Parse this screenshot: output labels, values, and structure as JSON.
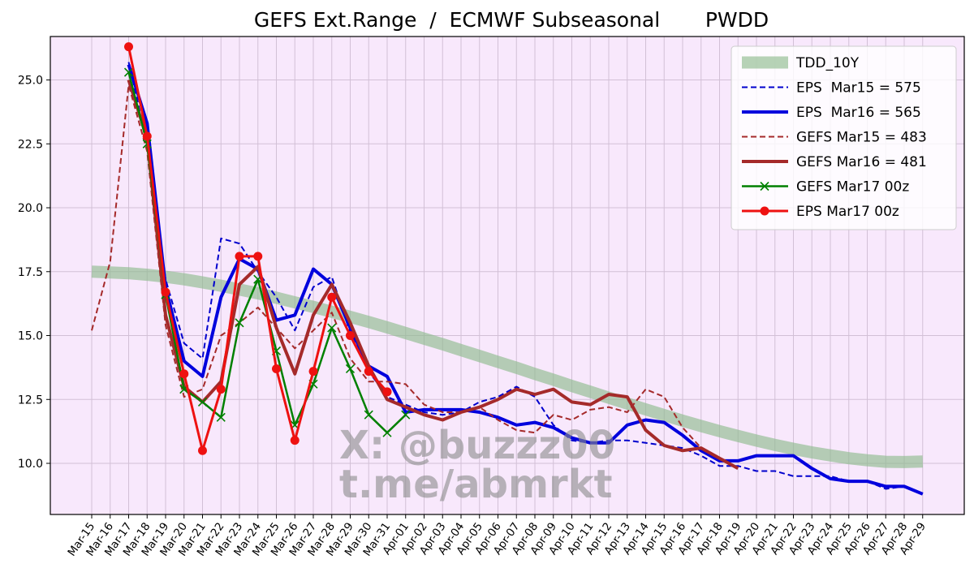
{
  "chart_data": {
    "type": "line",
    "title": "GEFS Ext.Range  /  ECMWF Subseasonal       PWDD",
    "xlabel": "",
    "ylabel": "",
    "ylim": [
      8.0,
      26.7
    ],
    "yticks": [
      10.0,
      12.5,
      15.0,
      17.5,
      20.0,
      22.5,
      25.0
    ],
    "ytick_labels": [
      "10.0",
      "12.5",
      "15.0",
      "17.5",
      "20.0",
      "22.5",
      "25.0"
    ],
    "grid": true,
    "legend_position": "top-right",
    "categories": [
      "Mar-15",
      "Mar-16",
      "Mar-17",
      "Mar-18",
      "Mar-19",
      "Mar-20",
      "Mar-21",
      "Mar-22",
      "Mar-23",
      "Mar-24",
      "Mar-25",
      "Mar-26",
      "Mar-27",
      "Mar-28",
      "Mar-29",
      "Mar-30",
      "Mar-31",
      "Apr-01",
      "Apr-02",
      "Apr-03",
      "Apr-04",
      "Apr-05",
      "Apr-06",
      "Apr-07",
      "Apr-08",
      "Apr-09",
      "Apr-10",
      "Apr-11",
      "Apr-12",
      "Apr-13",
      "Apr-14",
      "Apr-15",
      "Apr-16",
      "Apr-17",
      "Apr-18",
      "Apr-19",
      "Apr-20",
      "Apr-21",
      "Apr-22",
      "Apr-23",
      "Apr-24",
      "Apr-25",
      "Apr-26",
      "Apr-27",
      "Apr-28",
      "Apr-29"
    ],
    "series": [
      {
        "name": "TDD_10Y",
        "style": "band",
        "color": "#8fbc8f",
        "values": [
          17.5,
          17.47,
          17.44,
          17.38,
          17.3,
          17.2,
          17.08,
          16.95,
          16.8,
          16.65,
          16.48,
          16.3,
          16.12,
          15.93,
          15.73,
          15.53,
          15.32,
          15.1,
          14.88,
          14.66,
          14.43,
          14.2,
          13.97,
          13.74,
          13.5,
          13.27,
          13.03,
          12.8,
          12.57,
          12.34,
          12.11,
          11.89,
          11.67,
          11.46,
          11.26,
          11.07,
          10.89,
          10.72,
          10.57,
          10.43,
          10.31,
          10.2,
          10.12,
          10.06,
          10.05,
          10.07
        ]
      },
      {
        "name": "EPS  Mar15 = 575",
        "style": "dashed",
        "color": "#0000cd",
        "values": [
          null,
          null,
          25.7,
          22.5,
          17.2,
          14.7,
          14.1,
          18.8,
          18.6,
          17.5,
          16.5,
          15.2,
          16.9,
          17.3,
          15.1,
          13.6,
          12.6,
          12.3,
          12.0,
          11.9,
          12.0,
          12.4,
          12.6,
          13.0,
          12.6,
          11.5,
          10.9,
          10.8,
          10.9,
          10.9,
          10.8,
          10.7,
          10.6,
          10.3,
          9.9,
          9.9,
          9.7,
          9.7,
          9.5,
          9.5,
          9.5,
          9.3,
          9.3,
          9.0,
          9.1,
          8.8
        ]
      },
      {
        "name": "EPS  Mar16 = 565",
        "style": "thick",
        "color": "#0000dd",
        "values": [
          null,
          null,
          25.6,
          23.3,
          16.9,
          14.0,
          13.4,
          16.5,
          18.0,
          17.6,
          15.6,
          15.8,
          17.6,
          17.0,
          15.3,
          13.8,
          13.4,
          12.0,
          12.1,
          12.1,
          12.1,
          12.0,
          11.8,
          11.5,
          11.6,
          11.4,
          11.0,
          10.8,
          10.8,
          11.5,
          11.7,
          11.6,
          11.1,
          10.5,
          10.1,
          10.1,
          10.3,
          10.3,
          10.3,
          9.8,
          9.4,
          9.3,
          9.3,
          9.1,
          9.1,
          8.8
        ]
      },
      {
        "name": "GEFS Mar15 = 483",
        "style": "dashed",
        "color": "#a52a2a",
        "values": [
          15.2,
          17.9,
          24.8,
          22.2,
          15.4,
          12.6,
          12.9,
          15.0,
          15.5,
          16.1,
          15.3,
          14.5,
          15.2,
          15.9,
          14.1,
          13.2,
          13.2,
          13.1,
          12.3,
          12.0,
          12.0,
          12.2,
          11.7,
          11.3,
          11.2,
          11.9,
          11.7,
          12.1,
          12.2,
          12.0,
          12.9,
          12.6,
          11.4,
          10.6,
          10.2,
          null,
          null,
          null,
          null,
          null,
          null,
          null,
          null,
          null,
          null,
          null
        ]
      },
      {
        "name": "GEFS Mar16 = 481",
        "style": "thick",
        "color": "#a52a2a",
        "values": [
          null,
          null,
          25.0,
          22.7,
          15.8,
          13.0,
          12.4,
          13.2,
          17.0,
          17.7,
          15.3,
          13.5,
          15.8,
          17.0,
          15.5,
          13.8,
          12.5,
          12.2,
          11.9,
          11.7,
          12.0,
          12.2,
          12.5,
          12.9,
          12.7,
          12.9,
          12.4,
          12.3,
          12.7,
          12.6,
          11.3,
          10.7,
          10.5,
          10.6,
          10.2,
          9.8,
          null,
          null,
          null,
          null,
          null,
          null,
          null,
          null,
          null,
          null
        ]
      },
      {
        "name": "GEFS Mar17 00z",
        "style": "x",
        "color": "#008000",
        "values": [
          null,
          null,
          25.3,
          22.5,
          16.6,
          12.9,
          12.4,
          11.8,
          15.5,
          17.2,
          14.4,
          11.5,
          13.1,
          15.3,
          13.7,
          11.9,
          11.2,
          11.9,
          null,
          null,
          null,
          null,
          null,
          null,
          null,
          null,
          null,
          null,
          null,
          null,
          null,
          null,
          null,
          null,
          null,
          null,
          null,
          null,
          null,
          null,
          null,
          null,
          null,
          null,
          null,
          null
        ]
      },
      {
        "name": "EPS Mar17 00z",
        "style": "dot",
        "color": "#ee1111",
        "values": [
          null,
          null,
          26.3,
          22.8,
          16.7,
          13.5,
          10.5,
          12.9,
          18.1,
          18.1,
          13.7,
          10.9,
          13.6,
          16.5,
          15.0,
          13.6,
          12.8,
          null,
          null,
          null,
          null,
          null,
          null,
          null,
          null,
          null,
          null,
          null,
          null,
          null,
          null,
          null,
          null,
          null,
          null,
          null,
          null,
          null,
          null,
          null,
          null,
          null,
          null,
          null,
          null,
          null
        ]
      }
    ]
  },
  "watermark": {
    "line1": "X: @buzzz00",
    "line2": "t.me/abmrkt"
  }
}
